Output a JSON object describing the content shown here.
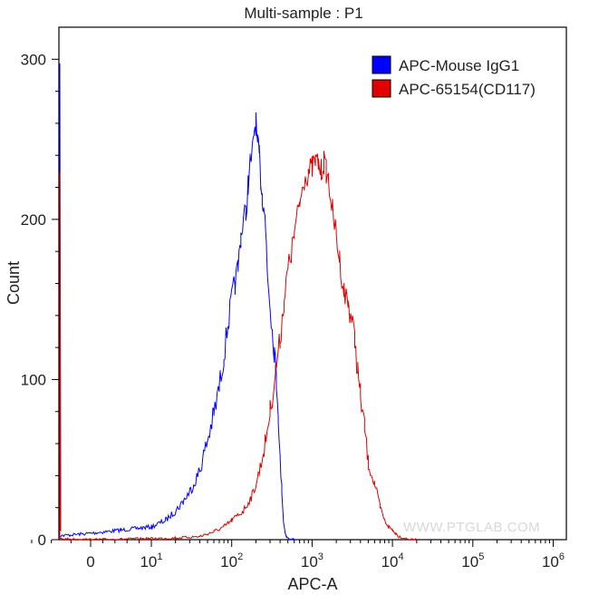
{
  "chart_data": {
    "type": "line",
    "title": "Multi-sample : P1",
    "xlabel": "APC-A",
    "ylabel": "Count",
    "x_scale": "biexponential",
    "xlim": [
      -300,
      1000000
    ],
    "ylim": [
      0,
      320
    ],
    "y_ticks": [
      0,
      100,
      200,
      300
    ],
    "x_tick_labels": [
      {
        "base": "0",
        "exp": ""
      },
      {
        "base": "10",
        "exp": "1"
      },
      {
        "base": "10",
        "exp": "2"
      },
      {
        "base": "10",
        "exp": "3"
      },
      {
        "base": "10",
        "exp": "4"
      },
      {
        "base": "10",
        "exp": "5"
      },
      {
        "base": "10",
        "exp": "6"
      }
    ],
    "grid": false,
    "legend_position": "top-right",
    "watermark": "WWW.PTGLAB.COM",
    "series": [
      {
        "name": "APC-Mouse IgG1",
        "color": "#0000ff",
        "x": [
          -300,
          0,
          5,
          10,
          15,
          20,
          25,
          30,
          40,
          50,
          60,
          70,
          80,
          90,
          100,
          110,
          120,
          130,
          140,
          150,
          160,
          170,
          180,
          190,
          200,
          210,
          220,
          230,
          240,
          250,
          260,
          270,
          280,
          300,
          320,
          340,
          360,
          380,
          400,
          420,
          440,
          460,
          480,
          500,
          520,
          540,
          560,
          580,
          600
        ],
        "y": [
          1,
          4,
          6,
          8,
          12,
          18,
          24,
          30,
          43,
          62,
          78,
          95,
          115,
          135,
          150,
          160,
          170,
          190,
          200,
          204,
          222,
          235,
          240,
          255,
          260,
          245,
          240,
          225,
          215,
          210,
          200,
          185,
          165,
          150,
          130,
          118,
          100,
          80,
          50,
          32,
          12,
          5,
          2,
          1,
          0,
          0,
          0,
          0,
          0
        ]
      },
      {
        "name": "APC-65154(CD117)",
        "color": "#e00000",
        "x": [
          -300,
          0,
          20,
          40,
          60,
          80,
          100,
          140,
          180,
          220,
          260,
          300,
          350,
          400,
          450,
          500,
          550,
          600,
          700,
          800,
          900,
          1000,
          1100,
          1200,
          1300,
          1400,
          1500,
          1600,
          1800,
          2000,
          2200,
          2500,
          2800,
          3100,
          3400,
          3700,
          4000,
          4500,
          5000,
          6000,
          7000,
          8000,
          9000,
          10000,
          11000,
          12000,
          14000,
          16000,
          20000
        ],
        "y": [
          1,
          0,
          1,
          2,
          5,
          8,
          12,
          18,
          28,
          42,
          60,
          80,
          105,
          125,
          150,
          168,
          178,
          190,
          210,
          225,
          230,
          232,
          236,
          235,
          230,
          236,
          230,
          225,
          205,
          190,
          175,
          155,
          148,
          138,
          125,
          105,
          90,
          70,
          48,
          35,
          20,
          12,
          8,
          6,
          4,
          2,
          1,
          0,
          0
        ]
      }
    ]
  }
}
